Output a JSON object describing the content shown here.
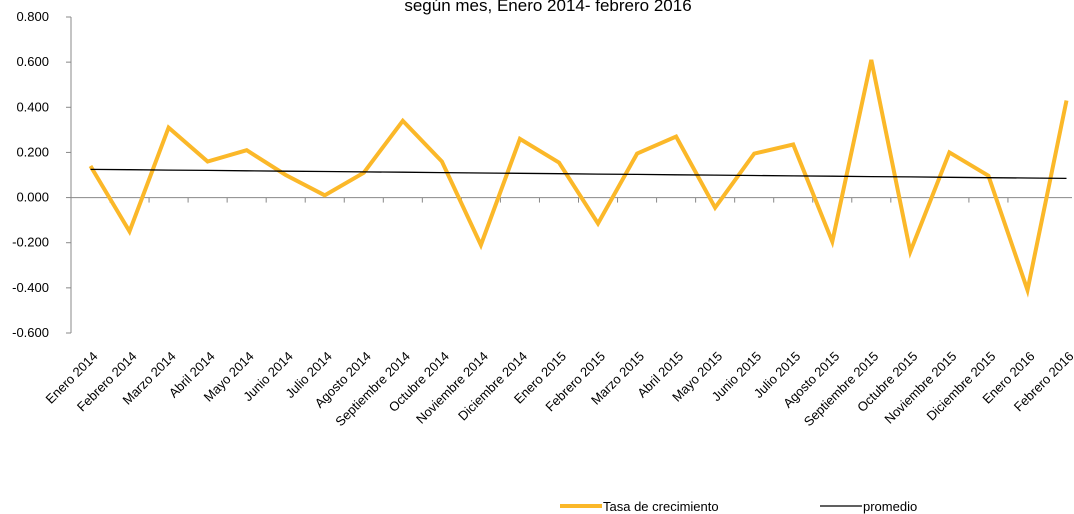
{
  "chart_data": {
    "type": "line",
    "title": "según mes, Enero 2014- febrero 2016",
    "categories": [
      "Enero 2014",
      "Febrero 2014",
      "Marzo 2014",
      "Abril 2014",
      "Mayo 2014",
      "Junio 2014",
      "Julio 2014",
      "Agosto 2014",
      "Septiembre 2014",
      "Octubre 2014",
      "Noviembre 2014",
      "Diciembre 2014",
      "Enero 2015",
      "Febrero 2015",
      "Marzo 2015",
      "Abril 2015",
      "Mayo 2015",
      "Junio 2015",
      "Julio 2015",
      "Agosto 2015",
      "Septiembre 2015",
      "Octubre 2015",
      "Noviembre 2015",
      "Diciembre 2015",
      "Enero 2016",
      "Febrero 2016"
    ],
    "series": [
      {
        "name": "Tasa de crecimiento",
        "color": "#fbb829",
        "values": [
          0.14,
          -0.15,
          0.31,
          0.16,
          0.21,
          0.1,
          0.01,
          0.11,
          0.34,
          0.16,
          -0.21,
          0.26,
          0.155,
          -0.115,
          0.195,
          0.27,
          -0.045,
          0.195,
          0.235,
          -0.195,
          0.61,
          -0.24,
          0.2,
          0.097,
          -0.41,
          0.43
        ]
      },
      {
        "name": "promedio",
        "color": "#000000",
        "values": [
          0.125,
          0.1234,
          0.1218,
          0.1202,
          0.1186,
          0.117,
          0.1154,
          0.1138,
          0.1122,
          0.1106,
          0.109,
          0.1074,
          0.1058,
          0.1042,
          0.1026,
          0.101,
          0.0994,
          0.0978,
          0.0962,
          0.0946,
          0.093,
          0.0914,
          0.0898,
          0.0882,
          0.0866,
          0.085
        ]
      }
    ],
    "ylim": [
      -0.6,
      0.8
    ],
    "yticks": [
      {
        "value": -0.6,
        "label": "-0.600"
      },
      {
        "value": -0.4,
        "label": "-0.400"
      },
      {
        "value": -0.2,
        "label": "-0.200"
      },
      {
        "value": 0,
        "label": "0.000"
      },
      {
        "value": 0.2,
        "label": "0.200"
      },
      {
        "value": 0.4,
        "label": "0.400"
      },
      {
        "value": 0.6,
        "label": "0.600"
      },
      {
        "value": 0.8,
        "label": "0.800"
      }
    ]
  }
}
